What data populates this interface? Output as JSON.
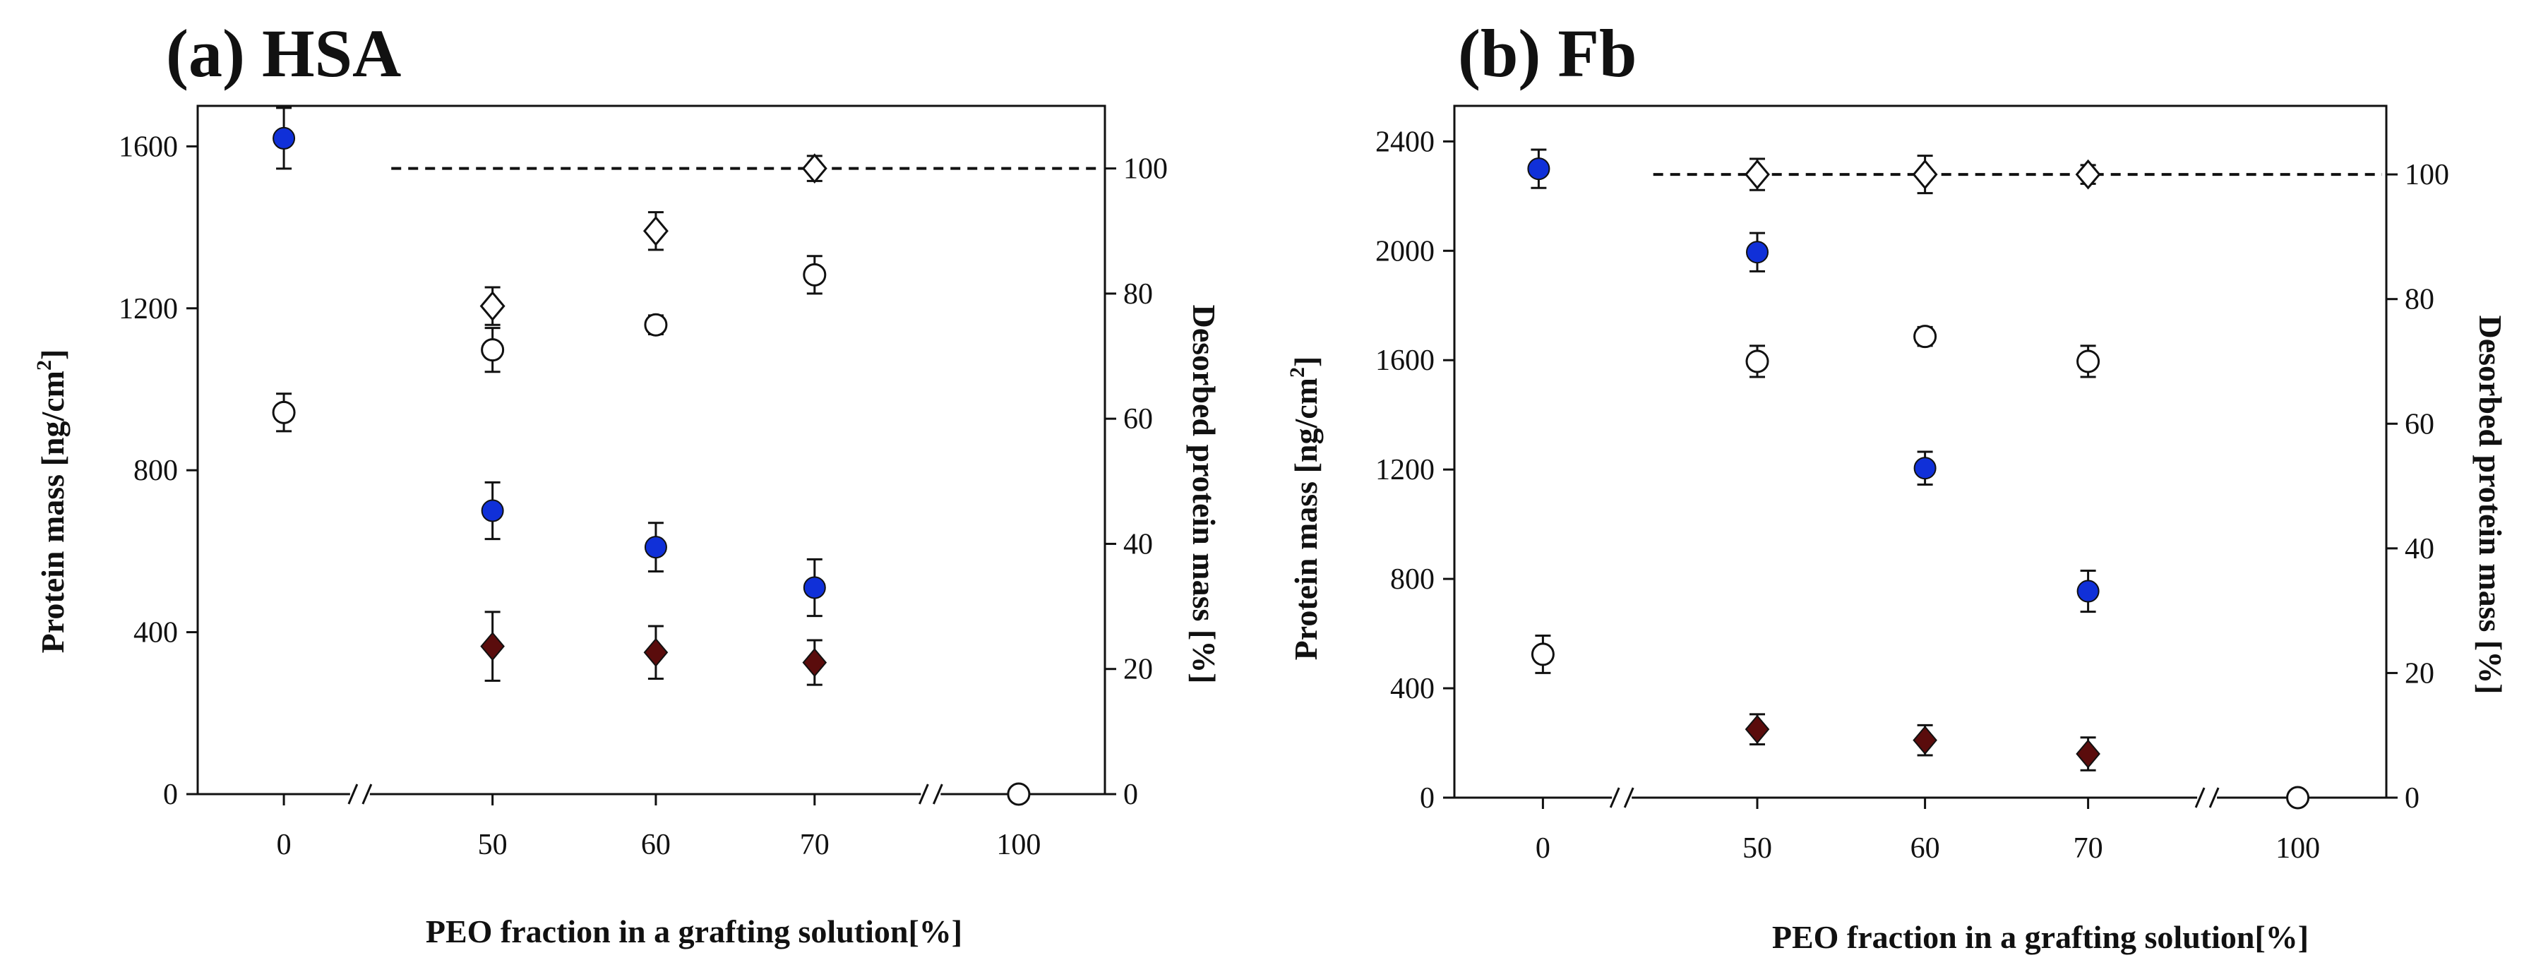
{
  "colors": {
    "blue_fill": "#1030d8",
    "diamond_fill": "#5a0c0c",
    "open_fill": "#ffffff",
    "stroke": "#111111",
    "dash": "#111111"
  },
  "chart_data": [
    {
      "type": "scatter",
      "panel_title": "(a) HSA",
      "xlabel": "PEO fraction in a grafting solution[%]",
      "ylabel_left": "Protein mass [ng/cm2]",
      "ylabel_left_parts": [
        "Protein mass [ng/cm",
        "2",
        "]"
      ],
      "ylabel_right": "Desorbed protein mass [%]",
      "categories": [
        "0",
        "50",
        "60",
        "70",
        "100"
      ],
      "x_positions": [
        0,
        50,
        60,
        70,
        100
      ],
      "axis_break": "//",
      "ylim_left": [
        0,
        1700
      ],
      "yticks_left": [
        0,
        400,
        800,
        1200,
        1600
      ],
      "ylim_right": [
        0,
        110
      ],
      "yticks_right": [
        0,
        20,
        40,
        60,
        80,
        100
      ],
      "series": [
        {
          "name": "Protein mass (filled circle)",
          "marker": "circle-filled",
          "axis": "left",
          "points": [
            {
              "x": "0",
              "y": 1620,
              "err": 75
            },
            {
              "x": "50",
              "y": 700,
              "err": 70
            },
            {
              "x": "60",
              "y": 610,
              "err": 60
            },
            {
              "x": "70",
              "y": 510,
              "err": 70
            }
          ]
        },
        {
          "name": "Protein mass (filled diamond)",
          "marker": "diamond-filled",
          "axis": "left",
          "points": [
            {
              "x": "50",
              "y": 365,
              "err": 85
            },
            {
              "x": "60",
              "y": 350,
              "err": 65
            },
            {
              "x": "70",
              "y": 325,
              "err": 55
            }
          ]
        },
        {
          "name": "Desorbed protein mass (open circle)",
          "marker": "circle-open",
          "axis": "right",
          "points": [
            {
              "x": "0",
              "y": 61,
              "err": 3
            },
            {
              "x": "50",
              "y": 71,
              "err": 3.5
            },
            {
              "x": "60",
              "y": 75,
              "err": 1.5
            },
            {
              "x": "70",
              "y": 83,
              "err": 3
            },
            {
              "x": "100",
              "y": 0,
              "err": 0
            }
          ]
        },
        {
          "name": "Desorbed protein mass (open diamond)",
          "marker": "diamond-open",
          "axis": "right",
          "points": [
            {
              "x": "50",
              "y": 78,
              "err": 3
            },
            {
              "x": "60",
              "y": 90,
              "err": 3
            },
            {
              "x": "70",
              "y": 100,
              "err": 2
            }
          ]
        }
      ],
      "reference_line": {
        "axis": "right",
        "y": 100,
        "x_from": 44,
        "x_to": 110,
        "style": "dashed"
      }
    },
    {
      "type": "scatter",
      "panel_title": "(b) Fb",
      "xlabel": "PEO fraction in a grafting solution[%]",
      "ylabel_left": "Protein mass [ng/cm2]",
      "ylabel_left_parts": [
        "Protein mass [ng/cm",
        "2",
        "]"
      ],
      "ylabel_right": "Desorbed protein mass [%]",
      "categories": [
        "0",
        "50",
        "60",
        "70",
        "100"
      ],
      "x_positions": [
        0,
        50,
        60,
        70,
        100
      ],
      "axis_break": "//",
      "ylim_left": [
        0,
        2530
      ],
      "yticks_left": [
        0,
        400,
        800,
        1200,
        1600,
        2000,
        2400
      ],
      "ylim_right": [
        0,
        111
      ],
      "yticks_right": [
        0,
        20,
        40,
        60,
        80,
        100
      ],
      "series": [
        {
          "name": "Protein mass (filled circle)",
          "marker": "circle-filled",
          "axis": "left",
          "points": [
            {
              "x": "0",
              "y": 2300,
              "err": 70
            },
            {
              "x": "50",
              "y": 1995,
              "err": 70
            },
            {
              "x": "60",
              "y": 1205,
              "err": 60
            },
            {
              "x": "70",
              "y": 755,
              "err": 75
            }
          ]
        },
        {
          "name": "Protein mass (filled diamond)",
          "marker": "diamond-filled",
          "axis": "left",
          "points": [
            {
              "x": "50",
              "y": 250,
              "err": 55
            },
            {
              "x": "60",
              "y": 210,
              "err": 55
            },
            {
              "x": "70",
              "y": 160,
              "err": 60
            }
          ]
        },
        {
          "name": "Desorbed protein mass (open circle)",
          "marker": "circle-open",
          "axis": "right",
          "points": [
            {
              "x": "0",
              "y": 23,
              "err": 3
            },
            {
              "x": "50",
              "y": 70,
              "err": 2.5
            },
            {
              "x": "60",
              "y": 74,
              "err": 1.5
            },
            {
              "x": "70",
              "y": 70,
              "err": 2.5
            },
            {
              "x": "100",
              "y": 0,
              "err": 0
            }
          ]
        },
        {
          "name": "Desorbed protein mass (open diamond)",
          "marker": "diamond-open",
          "axis": "right",
          "points": [
            {
              "x": "50",
              "y": 100,
              "err": 2.5
            },
            {
              "x": "60",
              "y": 100,
              "err": 3
            },
            {
              "x": "70",
              "y": 100,
              "err": 1.5
            }
          ]
        }
      ],
      "reference_line": {
        "axis": "right",
        "y": 100,
        "x_from": 44,
        "x_to": 110,
        "style": "dashed"
      }
    }
  ]
}
